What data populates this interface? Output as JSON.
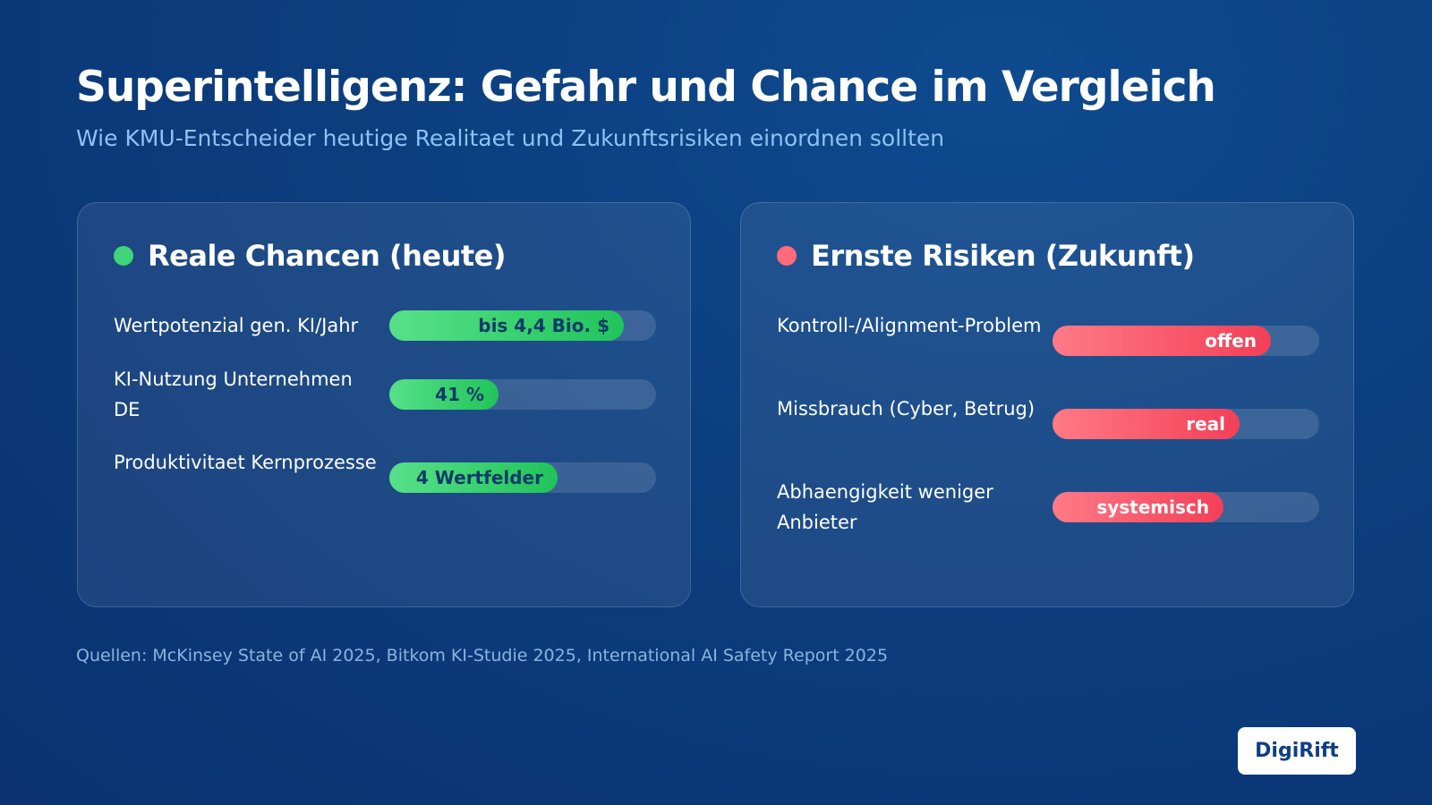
{
  "title": "Superintelligenz: Gefahr und Chance im Vergleich",
  "subtitle": "Wie KMU-Entscheider heutige Realitaet und Zukunftsrisiken einordnen sollten",
  "colors": {
    "chances_accent": "#3fd477",
    "risks_accent": "#ff6b7a",
    "background": "#0c3f80",
    "brand_text": "#0d3f85"
  },
  "chart_data": [
    {
      "type": "bar",
      "orientation": "horizontal",
      "title": "Reale Chancen (heute)",
      "categories": [
        "Wertpotenzial gen. KI/Jahr",
        "KI-Nutzung Unternehmen DE",
        "Produktivitaet Kernprozesse"
      ],
      "data_labels": [
        "bis 4,4 Bio. $",
        "41 %",
        "4 Wertfelder"
      ],
      "values": [
        0.88,
        0.41,
        0.63
      ],
      "xlim": [
        0,
        1
      ]
    },
    {
      "type": "bar",
      "orientation": "horizontal",
      "title": "Ernste Risiken (Zukunft)",
      "categories": [
        "Kontroll-/Alignment-Problem",
        "Missbrauch (Cyber, Betrug)",
        "Abhaengigkeit weniger Anbieter"
      ],
      "data_labels": [
        "offen",
        "real",
        "systemisch"
      ],
      "values": [
        0.82,
        0.7,
        0.64
      ],
      "xlim": [
        0,
        1
      ]
    }
  ],
  "source": "Quellen: McKinsey State of AI 2025, Bitkom KI-Studie 2025, International AI Safety Report 2025",
  "brand": "DigiRift"
}
